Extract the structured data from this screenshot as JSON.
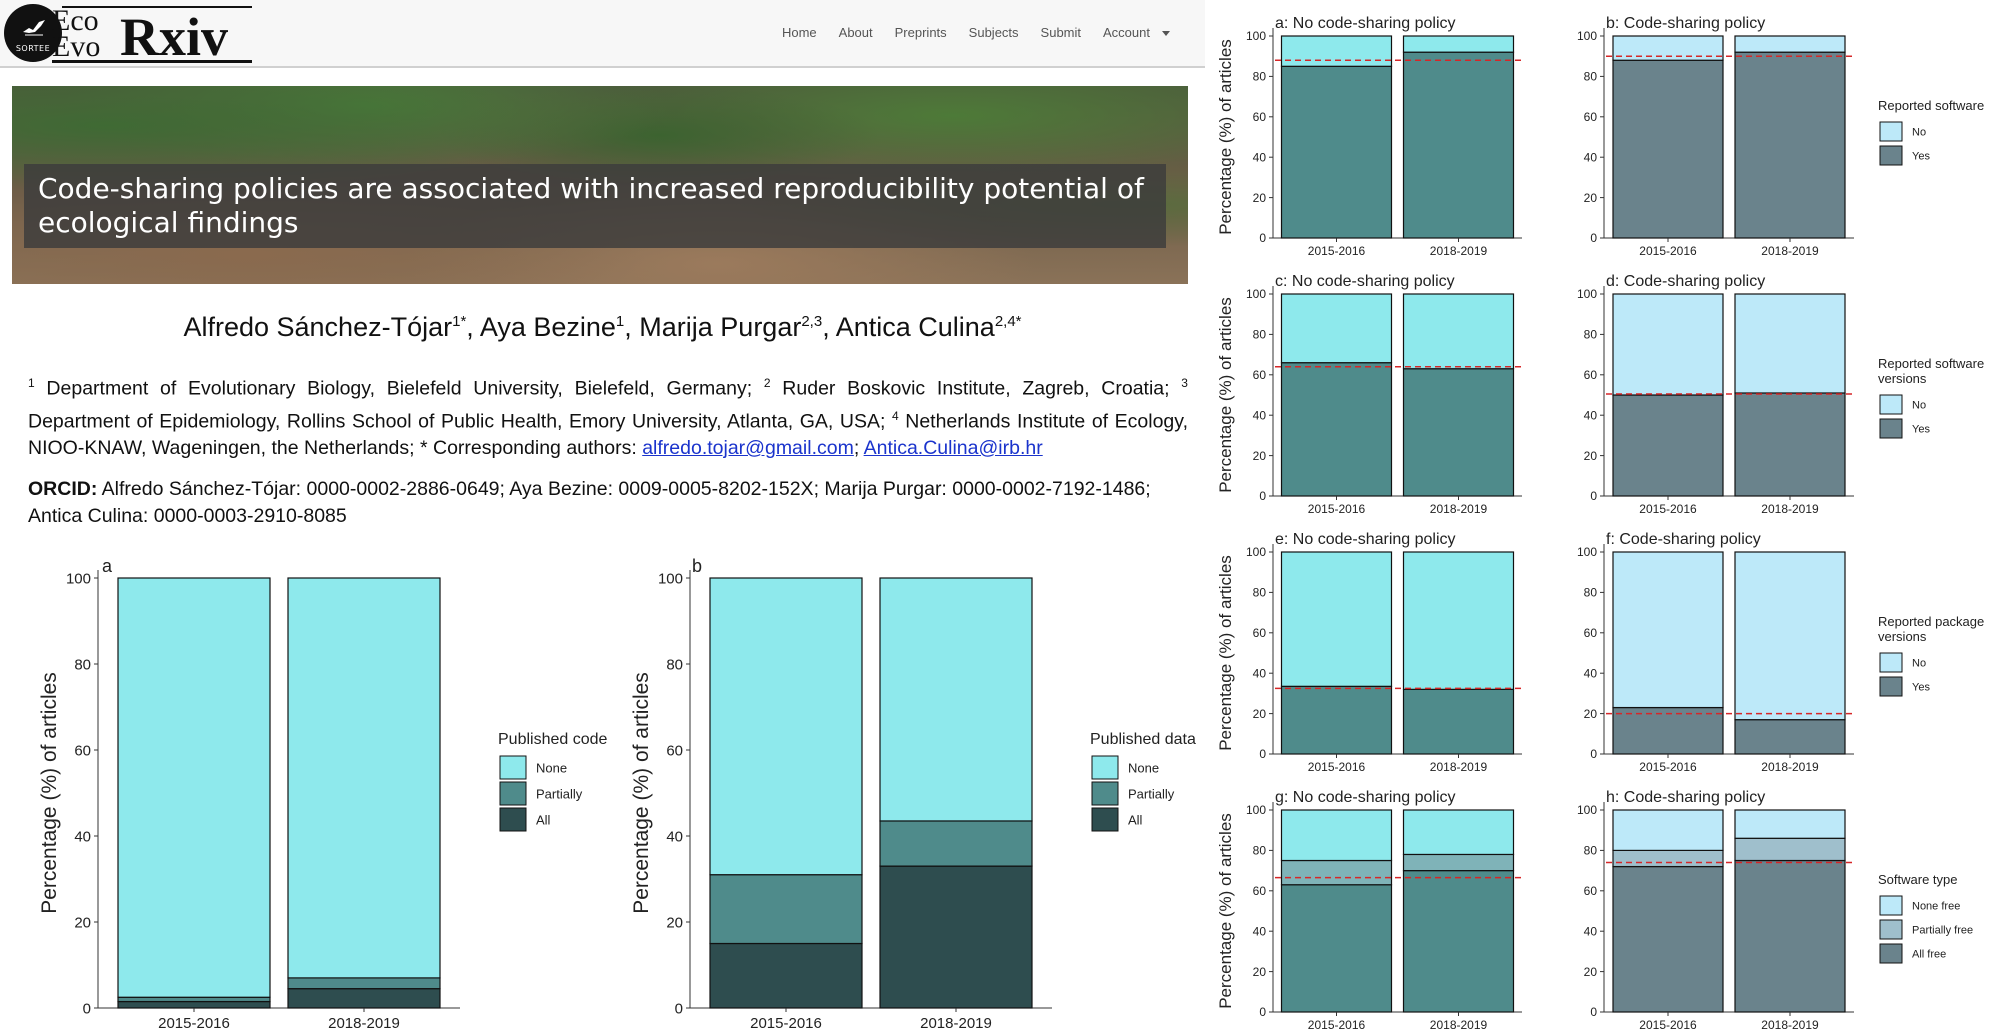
{
  "site": {
    "badge_text": "SORTEE",
    "wordmark_eco": "Eco",
    "wordmark_evo": "Evo",
    "wordmark_rxiv": "Rxiv"
  },
  "nav": {
    "items": [
      "Home",
      "About",
      "Preprints",
      "Subjects",
      "Submit",
      "Account"
    ]
  },
  "hero": {
    "title": "Code-sharing policies are associated with increased reproducibility potential of ecological findings"
  },
  "authors": [
    {
      "name": "Alfredo Sánchez-Tójar",
      "sup": "1*"
    },
    {
      "name": "Aya Bezine",
      "sup": "1"
    },
    {
      "name": "Marija Purgar",
      "sup": "2,3"
    },
    {
      "name": "Antica Culina",
      "sup": "2,4*"
    }
  ],
  "affiliations": {
    "a1_sup": "1",
    "a1": " Department of Evolutionary Biology, Bielefeld University, Bielefeld, Germany; ",
    "a2_sup": "2",
    "a2": " Ruder Boskovic Institute, Zagreb, Croatia; ",
    "a3_sup": "3",
    "a3": " Department of Epidemiology, Rollins School of Public Health, Emory University, Atlanta, GA, USA; ",
    "a4_sup": "4",
    "a4": " Netherlands Institute of Ecology, NIOO-KNAW, Wageningen, the Netherlands; * Corresponding authors: ",
    "email1": "alfredo.tojar@gmail.com",
    "sep": "; ",
    "email2": "Antica.Culina@irb.hr"
  },
  "orcid": {
    "label": "ORCID:",
    "text": " Alfredo Sánchez-Tójar: 0000-0002-2886-0649; Aya Bezine: 0009-0005-8202-152X; Marija Purgar: 0000-0002-7192-1486; Antica Culina: 0000-0003-2910-8085"
  },
  "colors": {
    "lightcyan": "#8ee9ec",
    "midteal": "#4f8b8b",
    "darkteal": "#2e4d4f",
    "lightblue": "#bde9f9",
    "slate": "#6a838c",
    "paleslate": "#9fbfcc",
    "refline": "#d62728"
  },
  "chart_data": [
    {
      "panel": "a",
      "type": "bar",
      "stacked": true,
      "categories": [
        "2015-2016",
        "2018-2019"
      ],
      "ylabel": "Percentage (%) of articles",
      "ylim": [
        0,
        100
      ],
      "yticks": [
        "0",
        "20",
        "40",
        "60",
        "80",
        "100"
      ],
      "legend_title": "Published code",
      "legend_position": "right",
      "series": [
        {
          "name": "All",
          "values": [
            1.5,
            4.5
          ],
          "color": "#2e4d4f"
        },
        {
          "name": "Partially",
          "values": [
            1.0,
            2.5
          ],
          "color": "#4f8b8b"
        },
        {
          "name": "None",
          "values": [
            97.5,
            93.0
          ],
          "color": "#8ee9ec"
        }
      ]
    },
    {
      "panel": "b",
      "type": "bar",
      "stacked": true,
      "categories": [
        "2015-2016",
        "2018-2019"
      ],
      "ylabel": "Percentage (%) of articles",
      "ylim": [
        0,
        100
      ],
      "yticks": [
        "0",
        "20",
        "40",
        "60",
        "80",
        "100"
      ],
      "legend_title": "Published data",
      "legend_position": "right",
      "series": [
        {
          "name": "All",
          "values": [
            15,
            33
          ],
          "color": "#2e4d4f"
        },
        {
          "name": "Partially",
          "values": [
            16,
            10.5
          ],
          "color": "#4f8b8b"
        },
        {
          "name": "None",
          "values": [
            69,
            56.5
          ],
          "color": "#8ee9ec"
        }
      ]
    },
    {
      "panel": "a",
      "title": "a: No code-sharing policy",
      "type": "bar",
      "stacked": true,
      "categories": [
        "2015-2016",
        "2018-2019"
      ],
      "ylabel": "Percentage (%) of articles",
      "ylim": [
        0,
        100
      ],
      "yticks": [
        "0",
        "20",
        "40",
        "60",
        "80",
        "100"
      ],
      "reference_line": 88,
      "series": [
        {
          "name": "Yes",
          "values": [
            85,
            92
          ],
          "color": "#4f8b8b"
        },
        {
          "name": "No",
          "values": [
            15,
            8
          ],
          "color": "#8ee9ec"
        }
      ]
    },
    {
      "panel": "b",
      "title": "b: Code-sharing policy",
      "type": "bar",
      "stacked": true,
      "categories": [
        "2015-2016",
        "2018-2019"
      ],
      "ylim": [
        0,
        100
      ],
      "yticks": [
        "0",
        "20",
        "40",
        "60",
        "80",
        "100"
      ],
      "reference_line": 90,
      "legend_title": "Reported software",
      "legend_position": "right",
      "series": [
        {
          "name": "Yes",
          "values": [
            88,
            92
          ],
          "color": "#6a838c"
        },
        {
          "name": "No",
          "values": [
            12,
            8
          ],
          "color": "#bde9f9"
        }
      ]
    },
    {
      "panel": "c",
      "title": "c: No code-sharing policy",
      "type": "bar",
      "stacked": true,
      "categories": [
        "2015-2016",
        "2018-2019"
      ],
      "ylabel": "Percentage (%) of articles",
      "ylim": [
        0,
        100
      ],
      "yticks": [
        "0",
        "20",
        "40",
        "60",
        "80",
        "100"
      ],
      "reference_line": 64,
      "series": [
        {
          "name": "Yes",
          "values": [
            66,
            63
          ],
          "color": "#4f8b8b"
        },
        {
          "name": "No",
          "values": [
            34,
            37
          ],
          "color": "#8ee9ec"
        }
      ]
    },
    {
      "panel": "d",
      "title": "d: Code-sharing policy",
      "type": "bar",
      "stacked": true,
      "categories": [
        "2015-2016",
        "2018-2019"
      ],
      "ylim": [
        0,
        100
      ],
      "yticks": [
        "0",
        "20",
        "40",
        "60",
        "80",
        "100"
      ],
      "reference_line": 50.5,
      "legend_title": "Reported software versions",
      "legend_position": "right",
      "series": [
        {
          "name": "Yes",
          "values": [
            50,
            51
          ],
          "color": "#6a838c"
        },
        {
          "name": "No",
          "values": [
            50,
            49
          ],
          "color": "#bde9f9"
        }
      ]
    },
    {
      "panel": "e",
      "title": "e: No code-sharing policy",
      "type": "bar",
      "stacked": true,
      "categories": [
        "2015-2016",
        "2018-2019"
      ],
      "ylabel": "Percentage (%) of articles",
      "ylim": [
        0,
        100
      ],
      "yticks": [
        "0",
        "20",
        "40",
        "60",
        "80",
        "100"
      ],
      "reference_line": 32.5,
      "series": [
        {
          "name": "Yes",
          "values": [
            33.5,
            32
          ],
          "color": "#4f8b8b"
        },
        {
          "name": "No",
          "values": [
            66.5,
            68
          ],
          "color": "#8ee9ec"
        }
      ]
    },
    {
      "panel": "f",
      "title": "f: Code-sharing policy",
      "type": "bar",
      "stacked": true,
      "categories": [
        "2015-2016",
        "2018-2019"
      ],
      "ylim": [
        0,
        100
      ],
      "yticks": [
        "0",
        "20",
        "40",
        "60",
        "80",
        "100"
      ],
      "reference_line": 20,
      "legend_title": "Reported package versions",
      "legend_position": "right",
      "series": [
        {
          "name": "Yes",
          "values": [
            23,
            17
          ],
          "color": "#6a838c"
        },
        {
          "name": "No",
          "values": [
            77,
            83
          ],
          "color": "#bde9f9"
        }
      ]
    },
    {
      "panel": "g",
      "title": "g: No code-sharing policy",
      "type": "bar",
      "stacked": true,
      "categories": [
        "2015-2016",
        "2018-2019"
      ],
      "ylabel": "Percentage (%) of articles",
      "ylim": [
        0,
        100
      ],
      "yticks": [
        "0",
        "20",
        "40",
        "60",
        "80",
        "100"
      ],
      "reference_line": 66.5,
      "series": [
        {
          "name": "All free",
          "values": [
            63,
            70
          ],
          "color": "#4f8b8b"
        },
        {
          "name": "Partially free",
          "values": [
            12,
            8
          ],
          "color": "#7fb3b8"
        },
        {
          "name": "None free",
          "values": [
            25,
            22
          ],
          "color": "#8ee9ec"
        }
      ]
    },
    {
      "panel": "h",
      "title": "h: Code-sharing policy",
      "type": "bar",
      "stacked": true,
      "categories": [
        "2015-2016",
        "2018-2019"
      ],
      "ylim": [
        0,
        100
      ],
      "yticks": [
        "0",
        "20",
        "40",
        "60",
        "80",
        "100"
      ],
      "reference_line": 74,
      "legend_title": "Software type",
      "legend_position": "right",
      "series": [
        {
          "name": "All free",
          "values": [
            72,
            75
          ],
          "color": "#6a838c"
        },
        {
          "name": "Partially free",
          "values": [
            8,
            11
          ],
          "color": "#9fbfcc"
        },
        {
          "name": "None free",
          "values": [
            20,
            14
          ],
          "color": "#bde9f9"
        }
      ]
    }
  ]
}
